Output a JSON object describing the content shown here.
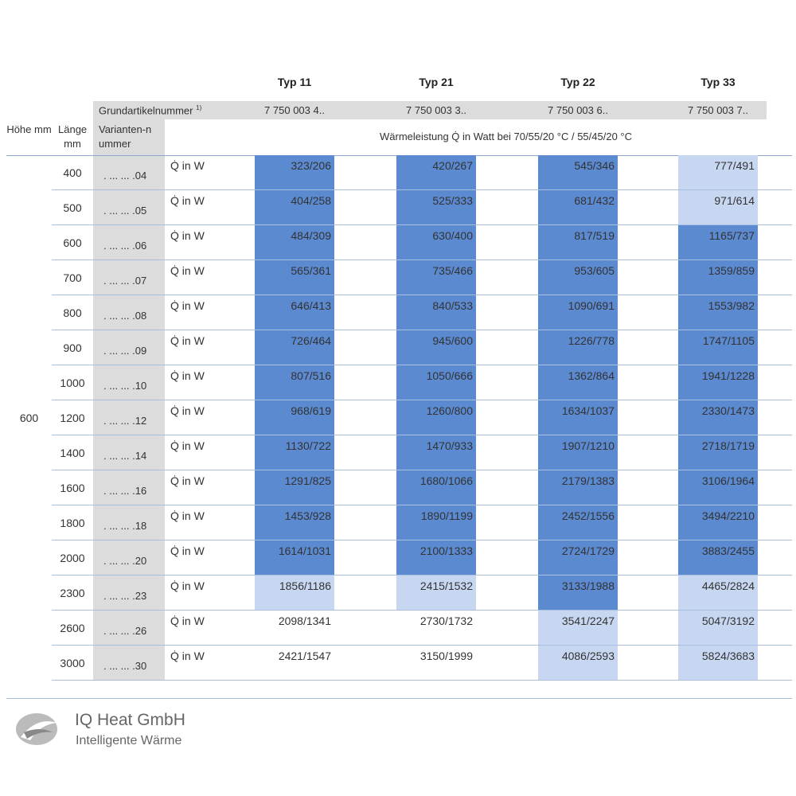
{
  "header": {
    "types": [
      "Typ 11",
      "Typ 21",
      "Typ 22",
      "Typ 33"
    ],
    "article_label": "Grundartikelnummer",
    "article_note": "1)",
    "article_numbers": [
      "7 750 003 4..",
      "7 750 003 3..",
      "7 750 003 6..",
      "7 750 003 7.."
    ],
    "col_hoehe": "Höhe mm",
    "col_laenge": "Länge mm",
    "col_variante": "Varianten-nummer",
    "col_leistung": "Wärmeleistung Q̇ in Watt bei 70/55/20 °C / 55/45/20 °C"
  },
  "hoehe": "600",
  "shade_colors": {
    "dark": "#5b8ad0",
    "light": "#c8d7f1"
  },
  "table": {
    "rows": [
      {
        "laenge": "400",
        "variante": ". ... ... .04",
        "label": "Q̇ in W",
        "values": [
          "323/206",
          "420/267",
          "545/346",
          "777/491"
        ],
        "shades": [
          "dark",
          "dark",
          "dark",
          "light"
        ]
      },
      {
        "laenge": "500",
        "variante": ". ... ... .05",
        "label": "Q̇ in W",
        "values": [
          "404/258",
          "525/333",
          "681/432",
          "971/614"
        ],
        "shades": [
          "dark",
          "dark",
          "dark",
          "light"
        ]
      },
      {
        "laenge": "600",
        "variante": ". ... ... .06",
        "label": "Q̇ in W",
        "values": [
          "484/309",
          "630/400",
          "817/519",
          "1165/737"
        ],
        "shades": [
          "dark",
          "dark",
          "dark",
          "dark"
        ]
      },
      {
        "laenge": "700",
        "variante": ". ... ... .07",
        "label": "Q̇ in W",
        "values": [
          "565/361",
          "735/466",
          "953/605",
          "1359/859"
        ],
        "shades": [
          "dark",
          "dark",
          "dark",
          "dark"
        ]
      },
      {
        "laenge": "800",
        "variante": ". ... ... .08",
        "label": "Q̇ in W",
        "values": [
          "646/413",
          "840/533",
          "1090/691",
          "1553/982"
        ],
        "shades": [
          "dark",
          "dark",
          "dark",
          "dark"
        ]
      },
      {
        "laenge": "900",
        "variante": ". ... ... .09",
        "label": "Q̇ in W",
        "values": [
          "726/464",
          "945/600",
          "1226/778",
          "1747/1105"
        ],
        "shades": [
          "dark",
          "dark",
          "dark",
          "dark"
        ]
      },
      {
        "laenge": "1000",
        "variante": ". ... ... .10",
        "label": "Q̇ in W",
        "values": [
          "807/516",
          "1050/666",
          "1362/864",
          "1941/1228"
        ],
        "shades": [
          "dark",
          "dark",
          "dark",
          "dark"
        ]
      },
      {
        "laenge": "1200",
        "variante": ". ... ... .12",
        "label": "Q̇ in W",
        "values": [
          "968/619",
          "1260/800",
          "1634/1037",
          "2330/1473"
        ],
        "shades": [
          "dark",
          "dark",
          "dark",
          "dark"
        ]
      },
      {
        "laenge": "1400",
        "variante": ". ... ... .14",
        "label": "Q̇ in W",
        "values": [
          "1130/722",
          "1470/933",
          "1907/1210",
          "2718/1719"
        ],
        "shades": [
          "dark",
          "dark",
          "dark",
          "dark"
        ]
      },
      {
        "laenge": "1600",
        "variante": ". ... ... .16",
        "label": "Q̇ in W",
        "values": [
          "1291/825",
          "1680/1066",
          "2179/1383",
          "3106/1964"
        ],
        "shades": [
          "dark",
          "dark",
          "dark",
          "dark"
        ]
      },
      {
        "laenge": "1800",
        "variante": ". ... ... .18",
        "label": "Q̇ in W",
        "values": [
          "1453/928",
          "1890/1199",
          "2452/1556",
          "3494/2210"
        ],
        "shades": [
          "dark",
          "dark",
          "dark",
          "dark"
        ]
      },
      {
        "laenge": "2000",
        "variante": ". ... ... .20",
        "label": "Q̇ in W",
        "values": [
          "1614/1031",
          "2100/1333",
          "2724/1729",
          "3883/2455"
        ],
        "shades": [
          "dark",
          "dark",
          "dark",
          "dark"
        ]
      },
      {
        "laenge": "2300",
        "variante": ". ... ... .23",
        "label": "Q̇ in W",
        "values": [
          "1856/1186",
          "2415/1532",
          "3133/1988",
          "4465/2824"
        ],
        "shades": [
          "light",
          "light",
          "dark",
          "light"
        ]
      },
      {
        "laenge": "2600",
        "variante": ". ... ... .26",
        "label": "Q̇ in W",
        "values": [
          "2098/1341",
          "2730/1732",
          "3541/2247",
          "5047/3192"
        ],
        "shades": [
          null,
          null,
          "light",
          "light"
        ]
      },
      {
        "laenge": "3000",
        "variante": ". ... ... .30",
        "label": "Q̇ in W",
        "values": [
          "2421/1547",
          "3150/1999",
          "4086/2593",
          "5824/3683"
        ],
        "shades": [
          null,
          null,
          "light",
          "light"
        ]
      }
    ]
  },
  "footer": {
    "company": "IQ Heat GmbH",
    "slogan": "Intelligente Wärme"
  }
}
